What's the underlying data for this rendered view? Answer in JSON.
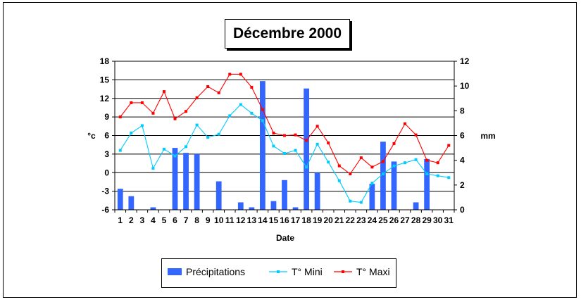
{
  "chart_data": {
    "type": "bar",
    "title": "Décembre 2000",
    "xlabel": "Date",
    "ylabel_left": "°c",
    "ylabel_right": "mm",
    "x": [
      1,
      2,
      3,
      4,
      5,
      6,
      7,
      8,
      9,
      10,
      11,
      12,
      13,
      14,
      15,
      16,
      17,
      18,
      19,
      20,
      21,
      22,
      23,
      24,
      25,
      26,
      27,
      28,
      29,
      30,
      31
    ],
    "left_axis": {
      "min": -6,
      "max": 18,
      "ticks": [
        -6,
        -3,
        0,
        3,
        6,
        9,
        12,
        15,
        18
      ]
    },
    "right_axis": {
      "min": 0,
      "max": 12,
      "ticks": [
        0,
        2,
        4,
        6,
        8,
        10,
        12
      ]
    },
    "grid": true,
    "legend": "bottom",
    "series": [
      {
        "name": "Précipitations",
        "kind": "bar",
        "axis": "right",
        "color": "#3366ff",
        "values": [
          1.7,
          1.1,
          0,
          0.2,
          0,
          5.0,
          4.6,
          4.5,
          0,
          2.3,
          0,
          0.6,
          0.2,
          10.4,
          0.7,
          2.4,
          0.2,
          9.8,
          3.0,
          0,
          0,
          0,
          0,
          2.1,
          5.5,
          3.9,
          0,
          0.6,
          4.1,
          0,
          0
        ]
      },
      {
        "name": "T° Mini",
        "kind": "line",
        "axis": "left",
        "color": "#00ccff",
        "values": [
          3.6,
          6.4,
          7.6,
          0.7,
          3.8,
          2.7,
          4.2,
          7.7,
          5.7,
          6.2,
          9.2,
          11.0,
          9.6,
          8.4,
          4.3,
          3.1,
          3.6,
          0.9,
          4.6,
          1.7,
          -1.3,
          -4.6,
          -4.8,
          -1.7,
          -0.2,
          1.1,
          1.6,
          2.1,
          -0.2,
          -0.5,
          -0.8
        ]
      },
      {
        "name": "T° Maxi",
        "kind": "line",
        "axis": "left",
        "color": "#ff0000",
        "values": [
          9.0,
          11.3,
          11.3,
          9.6,
          13.1,
          8.7,
          9.9,
          12.1,
          13.9,
          12.9,
          15.9,
          15.9,
          13.8,
          10.2,
          6.4,
          6.0,
          6.1,
          5.2,
          7.5,
          4.8,
          1.1,
          -0.2,
          2.4,
          0.9,
          1.8,
          4.7,
          7.9,
          6.1,
          2.0,
          1.6,
          4.4
        ]
      }
    ]
  }
}
